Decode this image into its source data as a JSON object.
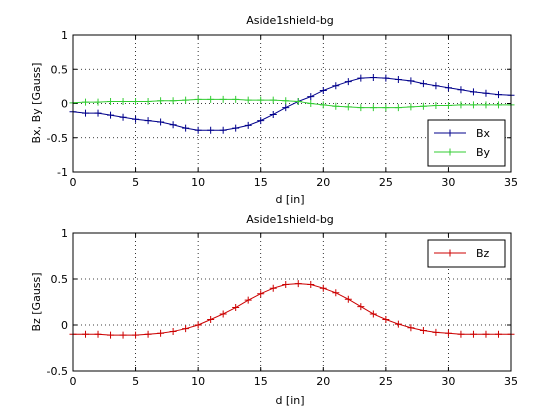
{
  "chart_data": [
    {
      "type": "line",
      "title": "Aside1shield-bg",
      "xlabel": "d [in]",
      "ylabel": "Bx, By [Gauss]",
      "xlim": [
        0,
        35
      ],
      "ylim": [
        -1,
        1
      ],
      "xticks": [
        "0",
        "5",
        "10",
        "15",
        "20",
        "25",
        "30",
        "35"
      ],
      "yticks": [
        "-1",
        "-0.5",
        "0",
        "0.5",
        "1"
      ],
      "grid": true,
      "legend_position": "bottom-right",
      "x": [
        0,
        1,
        2,
        3,
        4,
        5,
        6,
        7,
        8,
        9,
        10,
        11,
        12,
        13,
        14,
        15,
        16,
        17,
        18,
        19,
        20,
        21,
        22,
        23,
        24,
        25,
        26,
        27,
        28,
        29,
        30,
        31,
        32,
        33,
        34,
        35
      ],
      "series": [
        {
          "name": "Bx",
          "color": "#00008B",
          "marker": "+",
          "values": [
            -0.12,
            -0.14,
            -0.14,
            -0.17,
            -0.2,
            -0.23,
            -0.25,
            -0.27,
            -0.31,
            -0.36,
            -0.39,
            -0.39,
            -0.39,
            -0.36,
            -0.32,
            -0.25,
            -0.16,
            -0.06,
            0.03,
            0.1,
            0.19,
            0.26,
            0.32,
            0.37,
            0.38,
            0.37,
            0.35,
            0.33,
            0.29,
            0.26,
            0.23,
            0.2,
            0.17,
            0.15,
            0.13,
            0.12
          ]
        },
        {
          "name": "By",
          "color": "#33CC33",
          "marker": "+",
          "values": [
            0.01,
            0.02,
            0.02,
            0.03,
            0.03,
            0.03,
            0.03,
            0.04,
            0.04,
            0.05,
            0.06,
            0.06,
            0.06,
            0.06,
            0.05,
            0.05,
            0.05,
            0.04,
            0.03,
            0.0,
            -0.02,
            -0.04,
            -0.05,
            -0.06,
            -0.06,
            -0.06,
            -0.06,
            -0.05,
            -0.04,
            -0.03,
            -0.03,
            -0.02,
            -0.02,
            -0.02,
            -0.02,
            -0.02
          ]
        }
      ]
    },
    {
      "type": "line",
      "title": "Aside1shield-bg",
      "xlabel": "d [in]",
      "ylabel": "Bz [Gauss]",
      "xlim": [
        0,
        35
      ],
      "ylim": [
        -0.5,
        1
      ],
      "xticks": [
        "0",
        "5",
        "10",
        "15",
        "20",
        "25",
        "30",
        "35"
      ],
      "yticks": [
        "-0.5",
        "0",
        "0.5",
        "1"
      ],
      "grid": true,
      "legend_position": "top-right",
      "x": [
        0,
        1,
        2,
        3,
        4,
        5,
        6,
        7,
        8,
        9,
        10,
        11,
        12,
        13,
        14,
        15,
        16,
        17,
        18,
        19,
        20,
        21,
        22,
        23,
        24,
        25,
        26,
        27,
        28,
        29,
        30,
        31,
        32,
        33,
        34,
        35
      ],
      "series": [
        {
          "name": "Bz",
          "color": "#CC0000",
          "marker": "+",
          "values": [
            -0.1,
            -0.1,
            -0.1,
            -0.11,
            -0.11,
            -0.11,
            -0.1,
            -0.09,
            -0.07,
            -0.04,
            0.0,
            0.06,
            0.12,
            0.19,
            0.27,
            0.34,
            0.4,
            0.44,
            0.45,
            0.44,
            0.4,
            0.35,
            0.28,
            0.2,
            0.12,
            0.06,
            0.01,
            -0.03,
            -0.06,
            -0.08,
            -0.09,
            -0.1,
            -0.1,
            -0.1,
            -0.1,
            -0.1
          ]
        }
      ]
    }
  ]
}
